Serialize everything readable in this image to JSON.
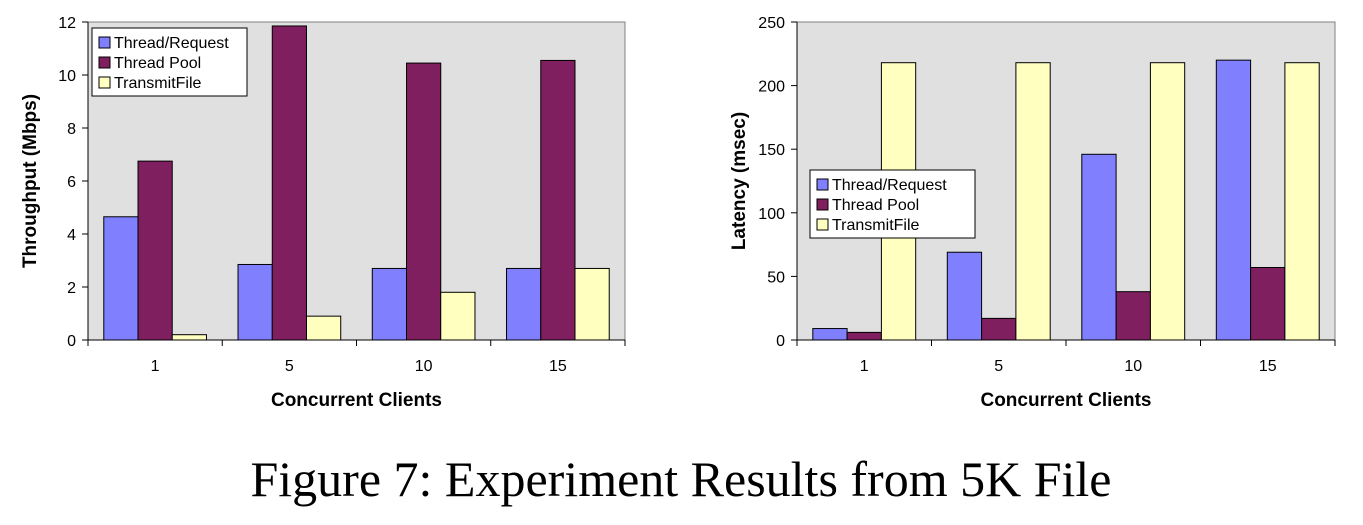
{
  "caption": "Figure 7: Experiment Results from 5K File",
  "colors": {
    "plot_bg": "#e0e0e0",
    "thread_request": "#8080ff",
    "thread_pool": "#801f5f",
    "transmitfile": "#ffffc0"
  },
  "chart_data": [
    {
      "type": "bar",
      "categories": [
        "1",
        "5",
        "10",
        "15"
      ],
      "xlabel": "Concurrent Clients",
      "ylabel": "Throughput (Mbps)",
      "ylim": [
        0,
        12
      ],
      "yticks": [
        "0",
        "2",
        "4",
        "6",
        "8",
        "10",
        "12"
      ],
      "legend_position": "top-left",
      "grid": false,
      "series": [
        {
          "name": "Thread/Request",
          "color_key": "thread_request",
          "values": [
            4.65,
            2.85,
            2.7,
            2.7
          ]
        },
        {
          "name": "Thread Pool",
          "color_key": "thread_pool",
          "values": [
            6.75,
            11.85,
            10.45,
            10.55
          ]
        },
        {
          "name": "TransmitFile",
          "color_key": "transmitfile",
          "values": [
            0.2,
            0.9,
            1.8,
            2.7
          ]
        }
      ]
    },
    {
      "type": "bar",
      "categories": [
        "1",
        "5",
        "10",
        "15"
      ],
      "xlabel": "Concurrent Clients",
      "ylabel": "Latency (msec)",
      "ylim": [
        0,
        250
      ],
      "yticks": [
        "0",
        "50",
        "100",
        "150",
        "200",
        "250"
      ],
      "legend_position": "middle-left",
      "grid": false,
      "series": [
        {
          "name": "Thread/Request",
          "color_key": "thread_request",
          "values": [
            9,
            69,
            146,
            220
          ]
        },
        {
          "name": "Thread Pool",
          "color_key": "thread_pool",
          "values": [
            6,
            17,
            38,
            57
          ]
        },
        {
          "name": "TransmitFile",
          "color_key": "transmitfile",
          "values": [
            218,
            218,
            218,
            218
          ]
        }
      ]
    }
  ]
}
